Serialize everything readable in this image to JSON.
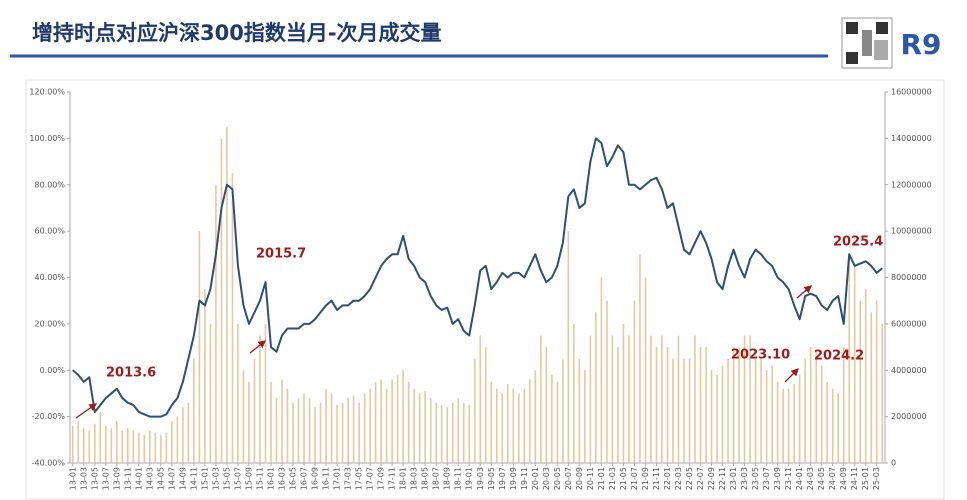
{
  "chart_data": {
    "type": "combo",
    "title": "增持时点对应沪深300指数当月-次月成交量",
    "badge": "R9",
    "annotations": [
      "2013.6",
      "2015.7",
      "2023.10",
      "2024.2",
      "2025.4"
    ],
    "categories": [
      "13-01",
      null,
      "13-03",
      null,
      "13-05",
      null,
      "13-07",
      null,
      "13-09",
      null,
      "13-11",
      null,
      "14-01",
      null,
      "14-03",
      null,
      "14-05",
      null,
      "14-07",
      null,
      "14-09",
      null,
      "14-11",
      null,
      "15-01",
      null,
      "15-03",
      null,
      "15-05",
      null,
      "15-07",
      null,
      "15-09",
      null,
      "15-11",
      null,
      "16-01",
      null,
      "16-03",
      null,
      "16-05",
      null,
      "16-07",
      null,
      "16-09",
      null,
      "16-11",
      null,
      "17-01",
      null,
      "17-03",
      null,
      "17-05",
      null,
      "17-07",
      null,
      "17-09",
      null,
      "17-11",
      null,
      "18-01",
      null,
      "18-03",
      null,
      "18-05",
      null,
      "18-07",
      null,
      "18-09",
      null,
      "18-11",
      null,
      "19-01",
      null,
      "19-03",
      null,
      "19-05",
      null,
      "19-07",
      null,
      "19-09",
      null,
      "19-11",
      null,
      "20-01",
      null,
      "20-03",
      null,
      "20-05",
      null,
      "20-07",
      null,
      "20-09",
      null,
      "20-11",
      null,
      "21-01",
      null,
      "21-03",
      null,
      "21-05",
      null,
      "21-07",
      null,
      "21-09",
      null,
      "21-11",
      null,
      "22-01",
      null,
      "22-03",
      null,
      "22-05",
      null,
      "22-07",
      null,
      "22-09",
      null,
      "22-11",
      null,
      "23-01",
      null,
      "23-03",
      null,
      "23-05",
      null,
      "23-07",
      null,
      "23-09",
      null,
      "23-11",
      null,
      "24-01",
      null,
      "24-03",
      null,
      "24-05",
      null,
      "24-07",
      null,
      "24-09",
      null,
      "24-11",
      null,
      "25-01",
      null,
      "25-03",
      null
    ],
    "series": [
      {
        "type": "bar",
        "axis": "y2",
        "color": "#e6c7a0",
        "values": [
          1600000,
          1800000,
          1500000,
          1400000,
          1700000,
          2200000,
          1600000,
          1500000,
          1800000,
          1400000,
          1500000,
          1400000,
          1300000,
          1200000,
          1400000,
          1300000,
          1200000,
          1300000,
          1800000,
          2000000,
          2400000,
          2600000,
          4500000,
          10000000,
          7500000,
          6000000,
          12000000,
          14000000,
          14500000,
          12500000,
          6000000,
          4000000,
          3500000,
          4500000,
          5500000,
          6000000,
          3500000,
          2800000,
          3600000,
          3200000,
          2600000,
          2800000,
          3000000,
          2800000,
          2400000,
          2600000,
          3200000,
          3000000,
          2500000,
          2600000,
          2800000,
          2900000,
          2600000,
          3000000,
          3200000,
          3500000,
          3600000,
          3200000,
          3600000,
          3800000,
          4000000,
          3500000,
          3200000,
          3000000,
          3100000,
          2800000,
          2600000,
          2500000,
          2400000,
          2600000,
          2800000,
          2600000,
          2500000,
          4500000,
          5500000,
          5000000,
          3500000,
          3200000,
          3000000,
          3400000,
          3200000,
          3000000,
          3200000,
          3600000,
          4000000,
          5500000,
          5000000,
          3800000,
          3500000,
          4500000,
          10000000,
          6000000,
          4500000,
          4000000,
          5500000,
          6500000,
          8000000,
          7000000,
          5500000,
          5000000,
          6000000,
          5500000,
          7000000,
          9000000,
          8000000,
          5500000,
          5000000,
          5500000,
          5000000,
          4500000,
          5500000,
          4500000,
          4500000,
          5500000,
          5000000,
          5000000,
          4000000,
          3800000,
          4200000,
          4500000,
          5000000,
          5000000,
          5500000,
          5500000,
          4500000,
          4500000,
          4000000,
          4200000,
          3500000,
          3200000,
          3200000,
          3400000,
          3800000,
          4500000,
          5000000,
          4800000,
          4200000,
          3500000,
          3200000,
          3000000,
          5000000,
          9000000,
          8500000,
          7000000,
          7500000,
          6500000,
          7000000,
          6000000
        ]
      },
      {
        "type": "line",
        "axis": "y",
        "color": "#2e5077",
        "values": [
          0,
          -2,
          -5,
          -3,
          -18,
          -15,
          -12,
          -10,
          -8,
          -12,
          -14,
          -15,
          -18,
          -19,
          -20,
          -20,
          -20,
          -19,
          -15,
          -12,
          -5,
          5,
          15,
          30,
          28,
          35,
          50,
          70,
          80,
          78,
          45,
          28,
          20,
          25,
          30,
          38,
          10,
          8,
          15,
          18,
          18,
          18,
          20,
          20,
          22,
          25,
          28,
          30,
          26,
          28,
          28,
          30,
          30,
          32,
          35,
          40,
          45,
          48,
          50,
          50,
          58,
          48,
          45,
          40,
          38,
          32,
          28,
          26,
          27,
          20,
          22,
          17,
          15,
          28,
          43,
          45,
          35,
          38,
          42,
          40,
          42,
          42,
          40,
          45,
          50,
          43,
          38,
          40,
          45,
          55,
          75,
          78,
          70,
          72,
          90,
          100,
          98,
          88,
          92,
          97,
          94,
          80,
          80,
          78,
          80,
          82,
          83,
          78,
          70,
          72,
          62,
          52,
          50,
          55,
          60,
          55,
          48,
          38,
          35,
          45,
          52,
          45,
          40,
          48,
          52,
          50,
          47,
          45,
          40,
          38,
          35,
          28,
          22,
          32,
          33,
          32,
          28,
          26,
          30,
          32,
          20,
          50,
          45,
          46,
          47,
          45,
          42,
          44
        ]
      }
    ],
    "ylim": [
      -40,
      120
    ],
    "yticks": [
      {
        "value": -40,
        "label": "-40.00%"
      },
      {
        "value": -20,
        "label": "-20.00%"
      },
      {
        "value": 0,
        "label": "0.00%"
      },
      {
        "value": 20,
        "label": "20.00%"
      },
      {
        "value": 40,
        "label": "40.00%"
      },
      {
        "value": 60,
        "label": "60.00%"
      },
      {
        "value": 80,
        "label": "80.00%"
      },
      {
        "value": 100,
        "label": "100.00%"
      },
      {
        "value": 120,
        "label": "120.00%"
      }
    ],
    "y2lim": [
      0,
      16000000
    ],
    "y2ticks": [
      0,
      2000000,
      4000000,
      6000000,
      8000000,
      10000000,
      12000000,
      14000000,
      16000000
    ]
  }
}
